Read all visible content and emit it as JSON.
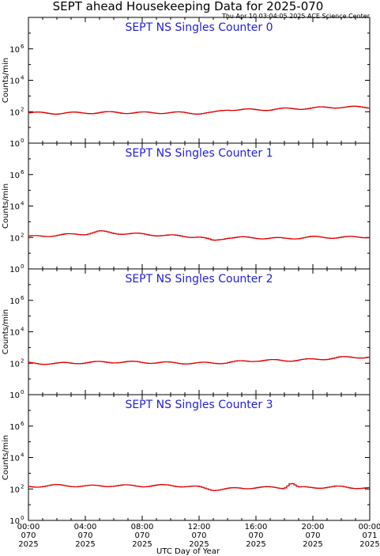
{
  "header": {
    "title": "SEPT ahead Housekeeping Data for 2025-070",
    "timestamp": "Thu Apr 10 03:04:05 2025 ACE Science Center"
  },
  "chart_data": [
    {
      "type": "line",
      "title": "SEPT NS Singles Counter 0",
      "ylabel": "Counts/min",
      "yscale": "log",
      "ylim": [
        1,
        100000000
      ],
      "xlim": [
        0,
        24
      ],
      "series": [
        {
          "x": [
            0,
            2,
            4,
            6,
            8,
            10,
            12,
            13,
            14,
            16,
            18,
            20,
            22,
            24
          ],
          "values": [
            85,
            80,
            85,
            90,
            85,
            88,
            80,
            85,
            140,
            130,
            150,
            170,
            200,
            190
          ]
        }
      ]
    },
    {
      "type": "line",
      "title": "SEPT NS Singles Counter 1",
      "ylabel": "Counts/min",
      "yscale": "log",
      "ylim": [
        1,
        100000000
      ],
      "xlim": [
        0,
        24
      ],
      "series": [
        {
          "x": [
            0,
            2,
            4,
            5,
            6,
            8,
            10,
            12,
            13,
            14,
            16,
            18,
            20,
            22,
            24
          ],
          "values": [
            110,
            140,
            170,
            240,
            190,
            160,
            130,
            110,
            60,
            100,
            95,
            85,
            105,
            100,
            110
          ]
        }
      ]
    },
    {
      "type": "line",
      "title": "SEPT NS Singles Counter 2",
      "ylabel": "Counts/min",
      "yscale": "log",
      "ylim": [
        1,
        100000000
      ],
      "xlim": [
        0,
        24
      ],
      "series": [
        {
          "x": [
            0,
            2,
            4,
            6,
            8,
            10,
            12,
            14,
            16,
            18,
            20,
            22,
            24
          ],
          "values": [
            100,
            95,
            110,
            120,
            115,
            105,
            100,
            110,
            150,
            150,
            170,
            230,
            250
          ]
        }
      ]
    },
    {
      "type": "line",
      "title": "SEPT NS Singles Counter 3",
      "ylabel": "Counts/min",
      "yscale": "log",
      "ylim": [
        1,
        100000000
      ],
      "xlim": [
        0,
        24
      ],
      "series": [
        {
          "x": [
            0,
            2,
            4,
            6,
            8,
            10,
            12,
            13,
            14,
            16,
            18,
            18.5,
            19,
            20,
            22,
            24
          ],
          "values": [
            140,
            170,
            150,
            165,
            155,
            170,
            130,
            90,
            100,
            125,
            120,
            260,
            120,
            125,
            135,
            110
          ]
        }
      ]
    }
  ],
  "y_ticks": [
    {
      "base": "10",
      "exp": "0",
      "value": 1
    },
    {
      "base": "10",
      "exp": "2",
      "value": 100
    },
    {
      "base": "10",
      "exp": "4",
      "value": 10000
    },
    {
      "base": "10",
      "exp": "6",
      "value": 1000000
    }
  ],
  "x_ticks": [
    {
      "hour": 0,
      "lines": [
        "00:00",
        "070",
        "2025"
      ]
    },
    {
      "hour": 4,
      "lines": [
        "04:00",
        "070",
        "2025"
      ]
    },
    {
      "hour": 8,
      "lines": [
        "08:00",
        "070",
        "2025"
      ]
    },
    {
      "hour": 12,
      "lines": [
        "12:00",
        "070",
        "2025"
      ]
    },
    {
      "hour": 16,
      "lines": [
        "16:00",
        "070",
        "2025"
      ]
    },
    {
      "hour": 20,
      "lines": [
        "20:00",
        "070",
        "2025"
      ]
    },
    {
      "hour": 24,
      "lines": [
        "00:00",
        "071",
        "2025"
      ]
    }
  ],
  "xlabel": "UTC Day of Year",
  "colors": {
    "trace": "#e00000",
    "panel_title": "#1f1fd6"
  }
}
